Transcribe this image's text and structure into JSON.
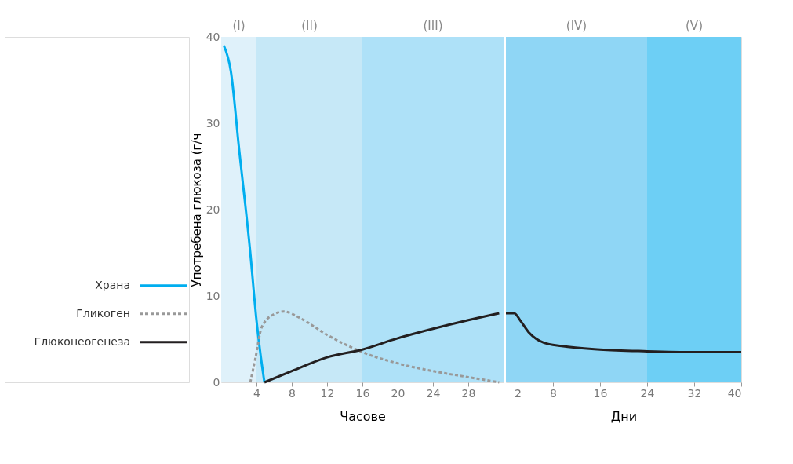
{
  "chart_data": [
    {
      "type": "line",
      "xlabel": "Часове",
      "ylabel": "Употребена глюкоза (г/ч",
      "xlim": [
        0,
        32
      ],
      "xticks": [
        4,
        8,
        12,
        16,
        20,
        24,
        28
      ],
      "ylim": [
        0,
        40
      ],
      "yticks": [
        0,
        10,
        20,
        30,
        40
      ],
      "grid": false,
      "legend": "left",
      "marker": "none",
      "bands": [
        {
          "axis": "x",
          "from": 0,
          "to": 4,
          "label": "(I)",
          "color": "#dff1fa"
        },
        {
          "axis": "x",
          "from": 4,
          "to": 16,
          "label": "(II)",
          "color": "#c6e8f7"
        },
        {
          "axis": "x",
          "from": 16,
          "to": 32,
          "label": "(III)",
          "color": "#aee1f8"
        }
      ],
      "series": [
        {
          "name": "Храна",
          "color": "#00aeef",
          "line_style": "solid",
          "x": [
            0.3,
            1.1,
            2,
            3.3,
            4,
            4.5,
            4.9
          ],
          "values": [
            39,
            36,
            27.3,
            15,
            7.2,
            2.9,
            0
          ]
        },
        {
          "name": "Гликоген",
          "color": "#999999",
          "line_style": "dashed",
          "x": [
            3.3,
            3.9,
            4.6,
            6,
            7.1,
            9,
            12,
            16,
            20,
            24,
            28,
            31.5
          ],
          "values": [
            0,
            2.9,
            6.4,
            7.9,
            8.2,
            7.4,
            5.5,
            3.5,
            2.2,
            1.3,
            0.6,
            0
          ]
        },
        {
          "name": "Глюконеогенеза",
          "color": "#231f20",
          "line_style": "solid",
          "x": [
            4.9,
            8,
            12,
            16,
            20,
            24,
            28,
            31.5
          ],
          "values": [
            0,
            1.3,
            2.9,
            3.8,
            5.1,
            6.2,
            7.2,
            8.0
          ]
        }
      ]
    },
    {
      "type": "line",
      "xlabel": "Дни",
      "xlim": [
        0,
        40
      ],
      "xticks": [
        2,
        8,
        16,
        24,
        32,
        40
      ],
      "ylim": [
        0,
        40
      ],
      "tick_labels": "x",
      "grid": false,
      "marker": "none",
      "bands": [
        {
          "axis": "x",
          "from": 0,
          "to": 24,
          "label": "(IV)",
          "color": "#8fd6f5"
        },
        {
          "axis": "x",
          "from": 24,
          "to": 40,
          "label": "(V)",
          "color": "#6dcff5"
        }
      ],
      "series": [
        {
          "color": "#231f20",
          "line_style": "solid",
          "x": [
            0,
            1.4,
            2.5,
            4,
            6.4,
            9.5,
            16,
            24,
            32,
            40
          ],
          "values": [
            8.0,
            8.0,
            7.1,
            5.7,
            4.6,
            4.2,
            3.8,
            3.6,
            3.5,
            3.5
          ]
        }
      ]
    }
  ]
}
